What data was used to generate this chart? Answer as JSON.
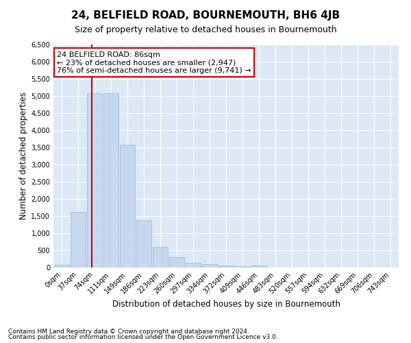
{
  "title": "24, BELFIELD ROAD, BOURNEMOUTH, BH6 4JB",
  "subtitle": "Size of property relative to detached houses in Bournemouth",
  "xlabel": "Distribution of detached houses by size in Bournemouth",
  "ylabel": "Number of detached properties",
  "footnote1": "Contains HM Land Registry data © Crown copyright and database right 2024.",
  "footnote2": "Contains public sector information licensed under the Open Government Licence v3.0.",
  "bar_labels": [
    "0sqm",
    "37sqm",
    "74sqm",
    "111sqm",
    "149sqm",
    "186sqm",
    "223sqm",
    "260sqm",
    "297sqm",
    "334sqm",
    "372sqm",
    "409sqm",
    "446sqm",
    "483sqm",
    "520sqm",
    "557sqm",
    "594sqm",
    "632sqm",
    "669sqm",
    "706sqm",
    "743sqm"
  ],
  "bar_values": [
    75,
    1625,
    5075,
    5075,
    3575,
    1375,
    600,
    300,
    150,
    100,
    60,
    40,
    60,
    0,
    0,
    0,
    0,
    0,
    0,
    0,
    0
  ],
  "bar_color": "#c5d8ef",
  "bar_edge_color": "#90b8d8",
  "vline_color": "#cc0000",
  "property_sqm": 86,
  "bin_starts": [
    0,
    37,
    74,
    111,
    149,
    186,
    223,
    260,
    297,
    334,
    372,
    409,
    446,
    483,
    520,
    557,
    594,
    632,
    669,
    706,
    743
  ],
  "bin_width": 37,
  "annotation_line1": "24 BELFIELD ROAD: 86sqm",
  "annotation_line2": "← 23% of detached houses are smaller (2,947)",
  "annotation_line3": "76% of semi-detached houses are larger (9,741) →",
  "ylim": [
    0,
    6500
  ],
  "yticks": [
    0,
    500,
    1000,
    1500,
    2000,
    2500,
    3000,
    3500,
    4000,
    4500,
    5000,
    5500,
    6000,
    6500
  ],
  "background_color": "#dce9f5",
  "grid_color": "#ffffff",
  "fig_bg_color": "#ffffff",
  "title_fontsize": 11,
  "subtitle_fontsize": 9,
  "xlabel_fontsize": 8.5,
  "ylabel_fontsize": 8.5,
  "tick_fontsize": 7,
  "annotation_fontsize": 8,
  "footnote_fontsize": 6.5
}
